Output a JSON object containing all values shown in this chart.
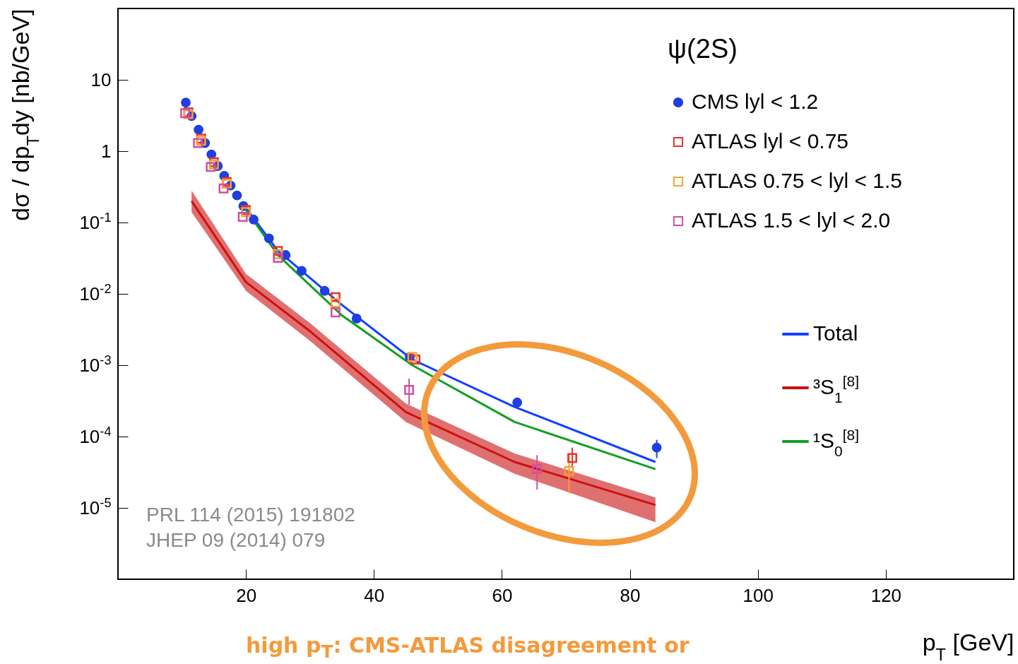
{
  "chart_data": {
    "type": "scatter",
    "xlabel": "p$_{T}$ [GeV]",
    "ylabel": "dσ / dp$_{T}$dy [nb/GeV]",
    "legend_title": "ψ(2S)",
    "xlim": [
      0,
      140
    ],
    "xticks": [
      20,
      40,
      60,
      80,
      100,
      120
    ],
    "log": "y",
    "ylim": [
      1e-06,
      100
    ],
    "yticks": [
      {
        "value": 1e-06,
        "label": null
      },
      {
        "value": 1e-05,
        "label": "10$^{-5}$"
      },
      {
        "value": 0.0001,
        "label": "10$^{-4}$"
      },
      {
        "value": 0.001,
        "label": "10$^{-3}$"
      },
      {
        "value": 0.01,
        "label": "10$^{-2}$"
      },
      {
        "value": 0.1,
        "label": "10$^{-1}$"
      },
      1,
      10,
      {
        "value": 100,
        "label": null
      }
    ],
    "grid": false,
    "legend": "top right",
    "annotations": [
      "PRL 114 (2015) 191802",
      "JHEP 09 (2014) 079",
      "high p$_{T}$: CMS-ATLAS disagreement or"
    ],
    "series": [
      {
        "name": "CMS lyl < 1.2",
        "type": "scatter",
        "marker": "circle",
        "color": "#1f3fe0",
        "x": [
          10.6,
          11.5,
          12.6,
          13.6,
          14.6,
          15.6,
          16.6,
          17.6,
          18.6,
          19.6,
          21.2,
          23.6,
          26.2,
          28.7,
          32.3,
          37.3,
          45.6,
          62.4,
          84.2
        ],
        "values": [
          4.8,
          3.1,
          2,
          1.3,
          0.9,
          0.62,
          0.45,
          0.33,
          0.24,
          0.17,
          0.11,
          0.06,
          0.035,
          0.021,
          0.011,
          0.0045,
          0.0013,
          0.0003,
          7e-05
        ],
        "errors": [
          null,
          null,
          null,
          null,
          null,
          null,
          null,
          null,
          null,
          null,
          null,
          null,
          null,
          null,
          null,
          null,
          null,
          [
            0.00025,
            0.00034
          ],
          [
            5e-05,
            9e-05
          ]
        ]
      },
      {
        "name": "ATLAS lyl < 0.75",
        "type": "scatter",
        "marker": "square",
        "color": "#e83030",
        "x": [
          11,
          13,
          15,
          17,
          20,
          25,
          34,
          46.5,
          71
        ],
        "values": [
          3.5,
          1.5,
          0.7,
          0.37,
          0.15,
          0.04,
          0.009,
          0.0012,
          5e-05
        ],
        "errors": [
          null,
          null,
          null,
          null,
          null,
          null,
          null,
          null,
          [
            3.8e-05,
            7e-05
          ]
        ]
      },
      {
        "name": "ATLAS 0.75 < lyl < 1.5",
        "type": "scatter",
        "marker": "square",
        "color": "#f8a030",
        "x": [
          11,
          13,
          15,
          17,
          20,
          25,
          34,
          46,
          70.5
        ],
        "values": [
          3.3,
          1.4,
          0.65,
          0.35,
          0.14,
          0.036,
          0.0075,
          0.0013,
          3.3e-05
        ],
        "errors": [
          null,
          null,
          null,
          null,
          null,
          null,
          null,
          null,
          [
            1.6e-05,
            5.5e-05
          ]
        ]
      },
      {
        "name": "ATLAS 1.5 < lyl < 2.0",
        "type": "scatter",
        "marker": "square",
        "color": "#d050a0",
        "x": [
          10.5,
          12.5,
          14.5,
          16.5,
          19.5,
          25,
          34,
          45.5,
          65.5
        ],
        "values": [
          3.4,
          1.3,
          0.6,
          0.3,
          0.12,
          0.032,
          0.0055,
          0.00045,
          3.5e-05
        ],
        "errors": [
          null,
          null,
          null,
          null,
          null,
          null,
          null,
          [
            0.00028,
            0.00065
          ],
          [
            1.8e-05,
            5.5e-05
          ]
        ]
      },
      {
        "name": "Total",
        "type": "line",
        "color": "#1040ff",
        "x": [
          20,
          25,
          35,
          46,
          62,
          84
        ],
        "values": [
          0.16,
          0.04,
          0.007,
          0.0012,
          0.00026,
          4.4e-05
        ]
      },
      {
        "name": "³S$_{1}$$^{[8]}$",
        "type": "line",
        "color": "#cc1010",
        "x": [
          11.5,
          20,
          30,
          45,
          62,
          84
        ],
        "values": [
          0.2,
          0.0146,
          0.003,
          0.00022,
          4.4e-05,
          1.1e-05
        ],
        "lower": [
          0.14,
          0.011,
          0.0022,
          0.00016,
          3e-05,
          6.3e-06
        ],
        "upper": [
          0.28,
          0.019,
          0.0039,
          0.00029,
          5.8e-05,
          1.4e-05
        ]
      },
      {
        "name": "¹S$_{0}$$^{[8]}$",
        "type": "line",
        "color": "#10a020",
        "x": [
          20,
          25,
          35,
          46,
          62,
          84
        ],
        "values": [
          0.15,
          0.035,
          0.005,
          0.001,
          0.00016,
          3.5e-05
        ]
      }
    ]
  }
}
